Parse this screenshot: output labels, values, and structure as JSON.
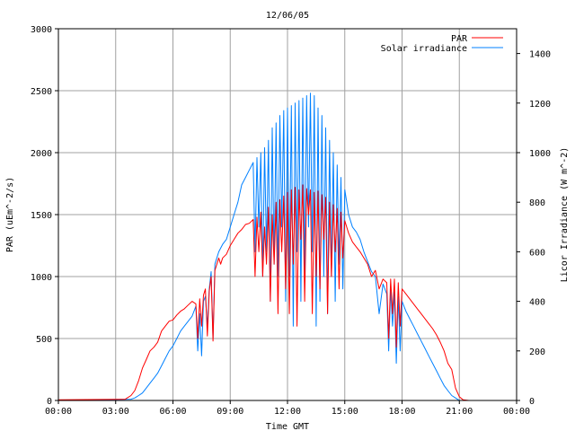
{
  "chart_data": {
    "type": "line",
    "title": "12/06/05",
    "xlabel": "Time GMT",
    "ylabel_left": "PAR (uEm^-2/s)",
    "ylabel_right": "Licor Irradiance (W m^-2)",
    "xlim": [
      0,
      24
    ],
    "ylim_left": [
      0,
      3000
    ],
    "ylim_right": [
      0,
      1500
    ],
    "x_ticks": [
      0,
      3,
      6,
      9,
      12,
      15,
      18,
      21,
      24
    ],
    "x_tick_labels": [
      "00:00",
      "03:00",
      "06:00",
      "09:00",
      "12:00",
      "15:00",
      "18:00",
      "21:00",
      "00:00"
    ],
    "y_left_ticks": [
      0,
      500,
      1000,
      1500,
      2000,
      2500,
      3000
    ],
    "y_left_tick_labels": [
      "0",
      "500",
      "1000",
      "1500",
      "2000",
      "2500",
      "3000"
    ],
    "y_right_ticks": [
      0,
      200,
      400,
      600,
      800,
      1000,
      1200,
      1400
    ],
    "y_right_tick_labels": [
      "0",
      "200",
      "400",
      "600",
      "800",
      "1000",
      "1200",
      "1400"
    ],
    "grid": true,
    "legend_position": "top-right",
    "series": [
      {
        "name": "PAR",
        "axis": "left",
        "color": "#ff0000",
        "x": [
          0,
          3.5,
          3.8,
          4.0,
          4.2,
          4.4,
          4.6,
          4.8,
          5.0,
          5.2,
          5.4,
          5.6,
          5.8,
          6.0,
          6.2,
          6.4,
          6.6,
          6.8,
          7.0,
          7.2,
          7.3,
          7.4,
          7.5,
          7.6,
          7.7,
          7.8,
          7.9,
          8.0,
          8.1,
          8.2,
          8.4,
          8.5,
          8.6,
          8.8,
          9.0,
          9.2,
          9.4,
          9.6,
          9.8,
          10.0,
          10.2,
          10.3,
          10.4,
          10.5,
          10.6,
          10.7,
          10.8,
          10.9,
          11.0,
          11.1,
          11.2,
          11.3,
          11.4,
          11.5,
          11.6,
          11.7,
          11.8,
          11.9,
          12.0,
          12.1,
          12.2,
          12.3,
          12.4,
          12.5,
          12.6,
          12.7,
          12.8,
          12.9,
          13.0,
          13.1,
          13.2,
          13.3,
          13.4,
          13.5,
          13.6,
          13.7,
          13.8,
          13.9,
          14.0,
          14.1,
          14.2,
          14.3,
          14.4,
          14.5,
          14.6,
          14.7,
          14.8,
          14.9,
          15.0,
          15.2,
          15.4,
          15.6,
          15.8,
          16.0,
          16.2,
          16.4,
          16.6,
          16.8,
          17.0,
          17.2,
          17.3,
          17.4,
          17.5,
          17.6,
          17.7,
          17.8,
          17.9,
          18.0,
          18.2,
          18.4,
          18.6,
          18.8,
          19.0,
          19.2,
          19.4,
          19.6,
          19.8,
          20.0,
          20.2,
          20.4,
          20.6,
          20.8,
          21.0,
          21.2,
          21.5,
          24
        ],
        "values": [
          5,
          10,
          40,
          80,
          160,
          260,
          330,
          400,
          430,
          470,
          560,
          600,
          640,
          650,
          690,
          720,
          740,
          770,
          800,
          780,
          500,
          820,
          600,
          850,
          900,
          520,
          880,
          1000,
          480,
          1050,
          1150,
          1100,
          1150,
          1180,
          1250,
          1300,
          1350,
          1380,
          1420,
          1430,
          1460,
          1000,
          1480,
          1200,
          1520,
          1000,
          1400,
          1100,
          1560,
          800,
          1500,
          1100,
          1600,
          700,
          1620,
          1200,
          1650,
          900,
          1680,
          700,
          1700,
          1100,
          1720,
          600,
          1700,
          1300,
          1740,
          800,
          1710,
          1500,
          1700,
          700,
          1680,
          1000,
          1690,
          900,
          1660,
          1300,
          1640,
          700,
          1600,
          1000,
          1580,
          1200,
          1550,
          900,
          1520,
          1150,
          1450,
          1350,
          1280,
          1240,
          1200,
          1150,
          1100,
          1000,
          1050,
          900,
          980,
          950,
          500,
          980,
          700,
          980,
          430,
          950,
          600,
          900,
          860,
          820,
          780,
          740,
          700,
          660,
          620,
          580,
          530,
          470,
          400,
          300,
          250,
          100,
          30,
          5,
          0,
          0
        ]
      },
      {
        "name": "Solar irradiance",
        "axis": "right",
        "color": "#0080ff",
        "x": [
          0,
          3.8,
          4.0,
          4.2,
          4.4,
          4.6,
          4.8,
          5.0,
          5.2,
          5.4,
          5.6,
          5.8,
          6.0,
          6.2,
          6.4,
          6.6,
          6.8,
          7.0,
          7.2,
          7.3,
          7.4,
          7.5,
          7.6,
          7.7,
          7.8,
          7.9,
          8.0,
          8.1,
          8.2,
          8.4,
          8.6,
          8.8,
          9.0,
          9.2,
          9.4,
          9.6,
          9.8,
          10.0,
          10.2,
          10.3,
          10.4,
          10.5,
          10.6,
          10.7,
          10.8,
          10.9,
          11.0,
          11.1,
          11.2,
          11.3,
          11.4,
          11.5,
          11.6,
          11.7,
          11.8,
          11.9,
          12.0,
          12.1,
          12.2,
          12.3,
          12.4,
          12.5,
          12.6,
          12.7,
          12.8,
          12.9,
          13.0,
          13.1,
          13.2,
          13.3,
          13.4,
          13.5,
          13.6,
          13.7,
          13.8,
          13.9,
          14.0,
          14.1,
          14.2,
          14.3,
          14.4,
          14.5,
          14.6,
          14.7,
          14.8,
          14.9,
          15.0,
          15.2,
          15.4,
          15.6,
          15.8,
          16.0,
          16.2,
          16.4,
          16.6,
          16.8,
          17.0,
          17.2,
          17.3,
          17.4,
          17.5,
          17.6,
          17.7,
          17.8,
          17.9,
          18.0,
          18.2,
          18.4,
          18.6,
          18.8,
          19.0,
          19.2,
          19.4,
          19.6,
          19.8,
          20.0,
          20.2,
          20.4,
          20.6,
          20.8,
          21.0,
          21.5,
          24
        ],
        "values": [
          0,
          5,
          10,
          20,
          30,
          50,
          70,
          90,
          110,
          140,
          170,
          200,
          220,
          250,
          280,
          300,
          320,
          340,
          380,
          200,
          350,
          180,
          400,
          420,
          300,
          450,
          520,
          250,
          550,
          600,
          630,
          650,
          700,
          750,
          800,
          870,
          900,
          930,
          960,
          600,
          980,
          700,
          1000,
          500,
          1020,
          600,
          1050,
          400,
          1100,
          550,
          1120,
          500,
          1150,
          700,
          1170,
          400,
          1180,
          500,
          1190,
          300,
          1200,
          600,
          1210,
          400,
          1220,
          500,
          1230,
          700,
          1240,
          600,
          1230,
          300,
          1180,
          400,
          1150,
          500,
          1100,
          350,
          1050,
          500,
          1000,
          400,
          950,
          550,
          900,
          450,
          850,
          750,
          700,
          680,
          650,
          600,
          560,
          520,
          500,
          350,
          470,
          430,
          200,
          450,
          300,
          440,
          150,
          420,
          200,
          400,
          360,
          330,
          300,
          270,
          240,
          210,
          180,
          150,
          120,
          90,
          60,
          40,
          20,
          10,
          0,
          0,
          0
        ]
      }
    ]
  }
}
